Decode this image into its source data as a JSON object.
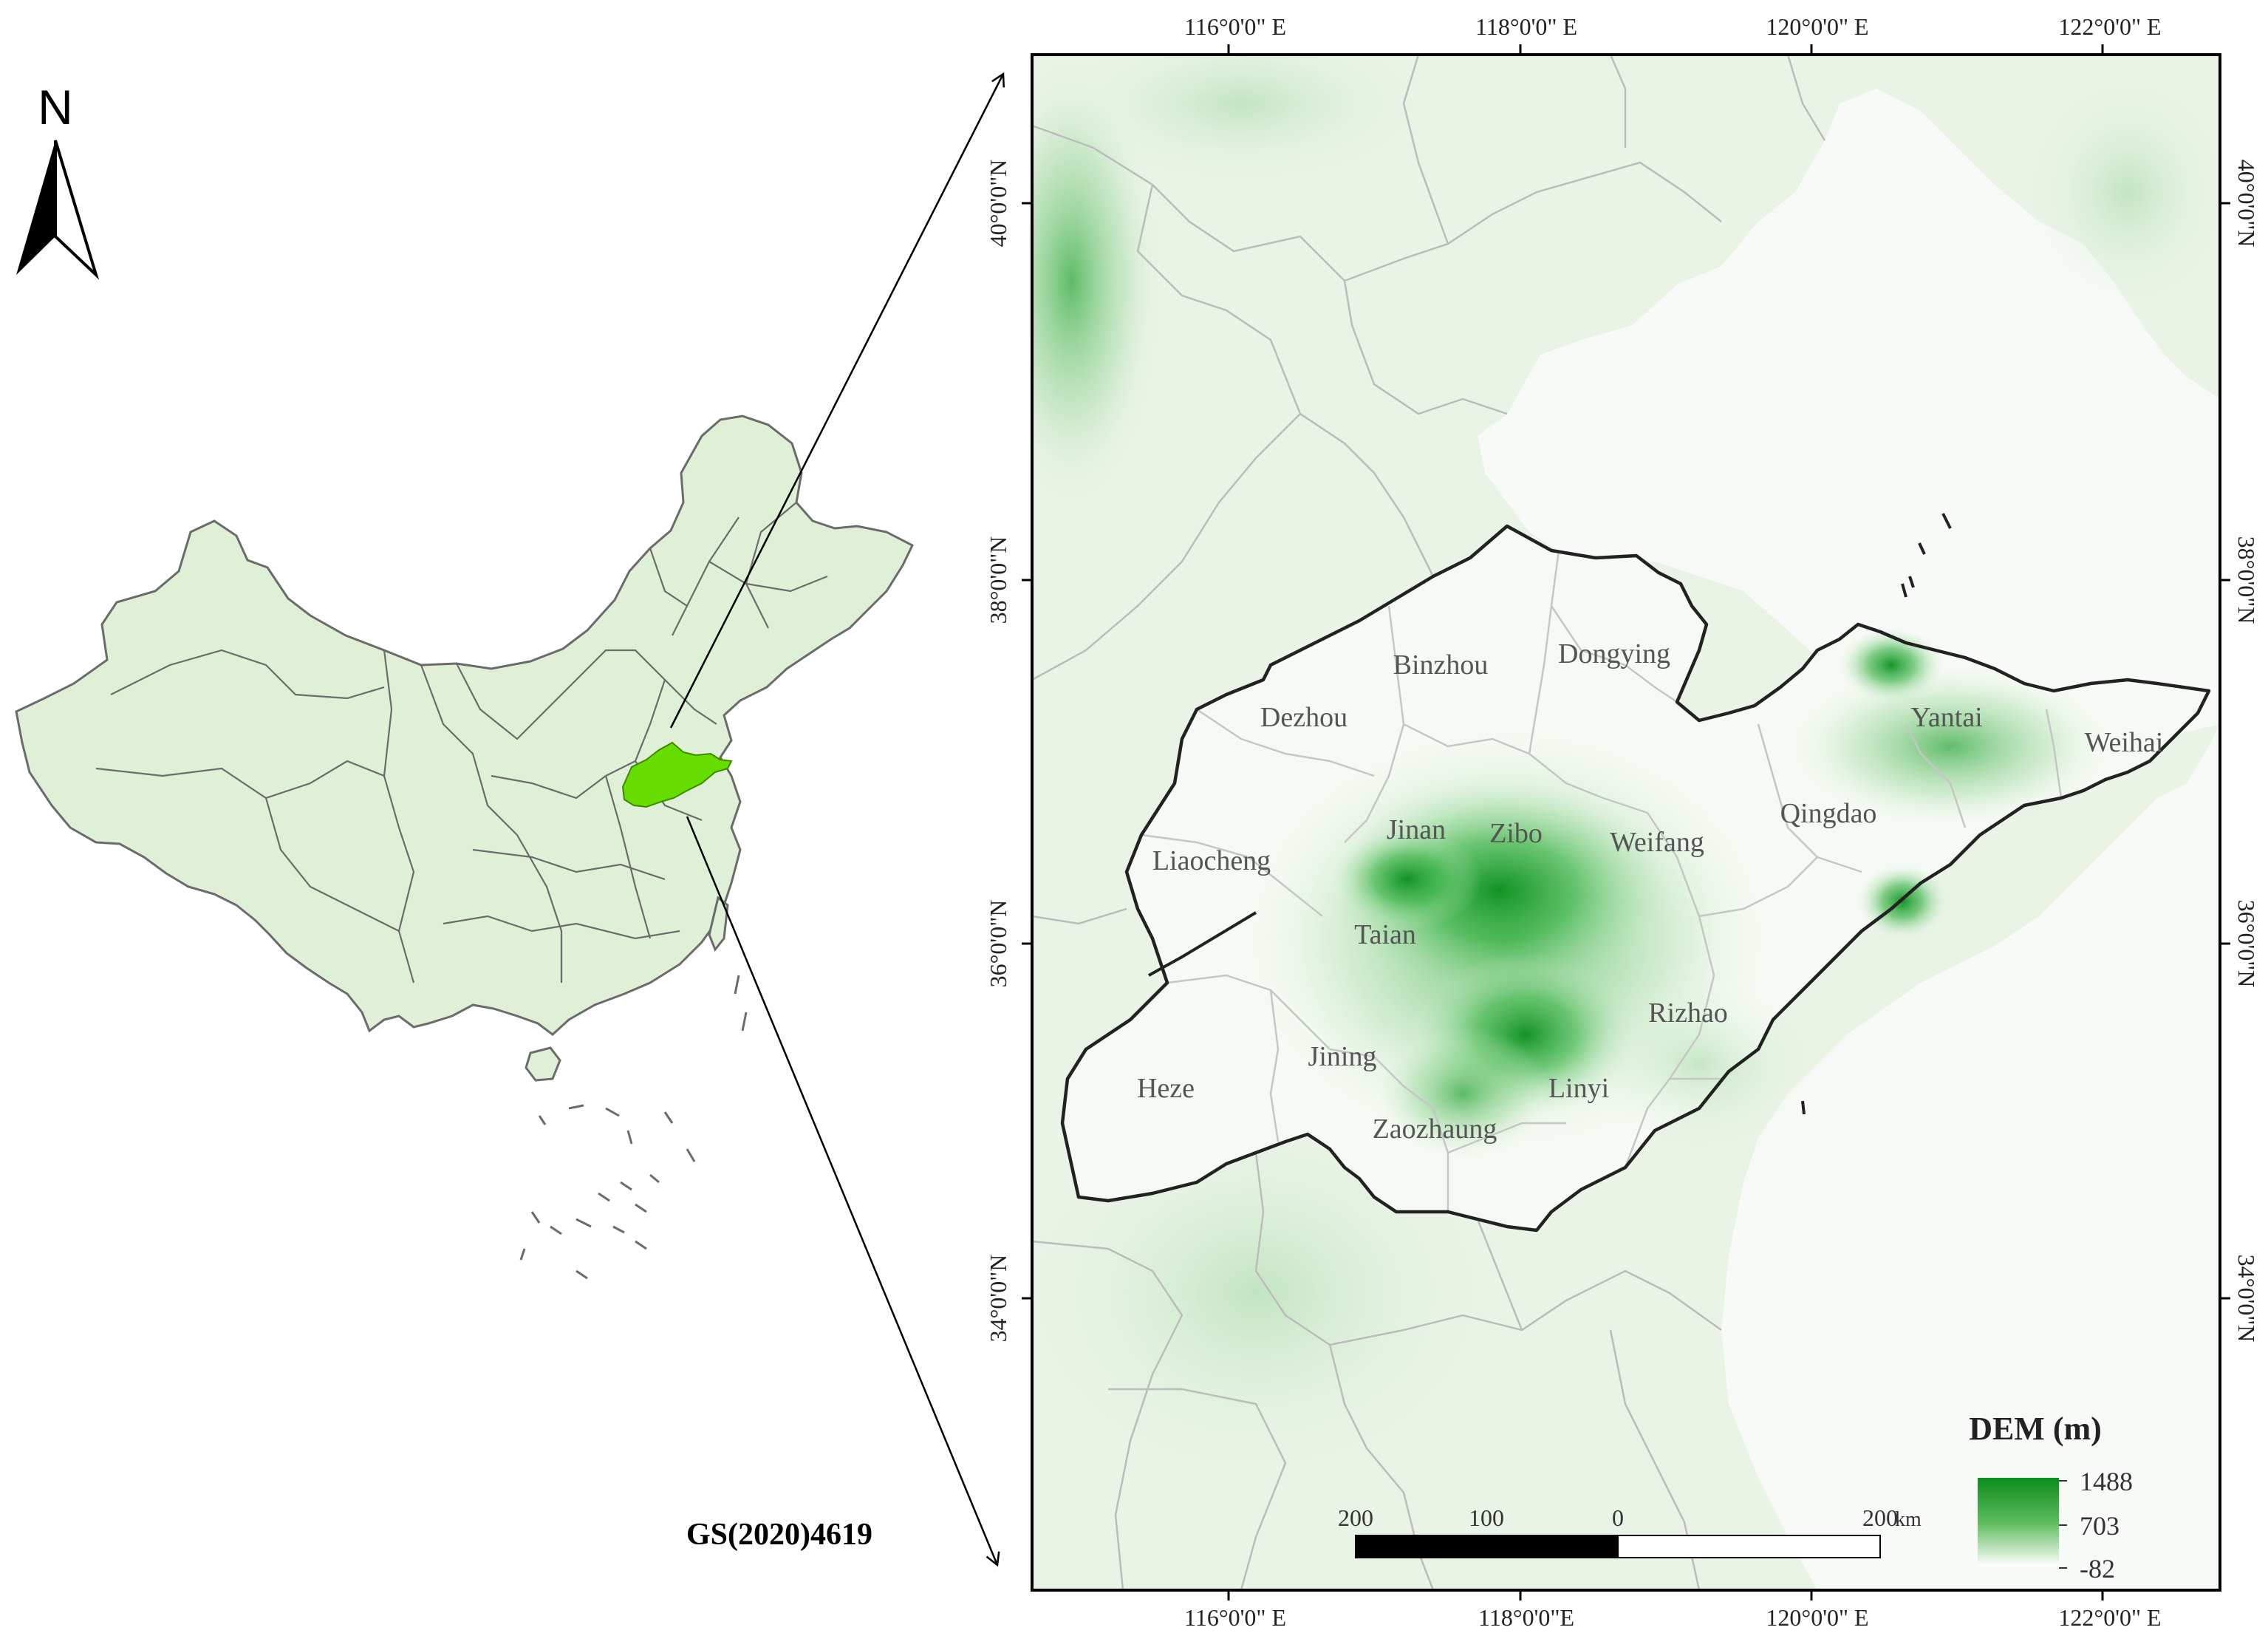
{
  "north_arrow": {
    "letter": "N"
  },
  "inset": {
    "highlight_color": "#66dd00",
    "land_color": "#e0f0d6",
    "border_color": "#6b6b6b",
    "label": "GS(2020)4619"
  },
  "main_map": {
    "top_lon_labels": [
      "116°0'0\" E",
      "118°0'0\" E",
      "120°0'0\" E",
      "122°0'0\" E"
    ],
    "bottom_lon_labels": [
      "116°0'0\" E",
      "118°0'0\"E",
      "120°0'0\" E",
      "122°0'0\" E"
    ],
    "left_lat_labels": [
      "40°0'0\"N",
      "38°0'0\"N",
      "36°0'0\"N",
      "34°0'0\"N"
    ],
    "right_lat_labels": [
      "40°0'0\"N",
      "38°0'0\"N",
      "36°0'0\"N",
      "34°0'0\"N"
    ],
    "cities": [
      "Binzhou",
      "Dongying",
      "Dezhou",
      "Yantai",
      "Weihai",
      "Qingdao",
      "Jinan",
      "Zibo",
      "Weifang",
      "Liaocheng",
      "Taian",
      "Rizhao",
      "Jining",
      "Heze",
      "Linyi",
      "Zaozhaung"
    ],
    "accent_color": "#1a9a2a"
  },
  "scale_bar": {
    "ticks": [
      "200",
      "100",
      "0",
      "200"
    ],
    "unit": "km"
  },
  "legend": {
    "title": "DEM (m)",
    "max": "1488",
    "mid": "703",
    "min": "-82"
  }
}
